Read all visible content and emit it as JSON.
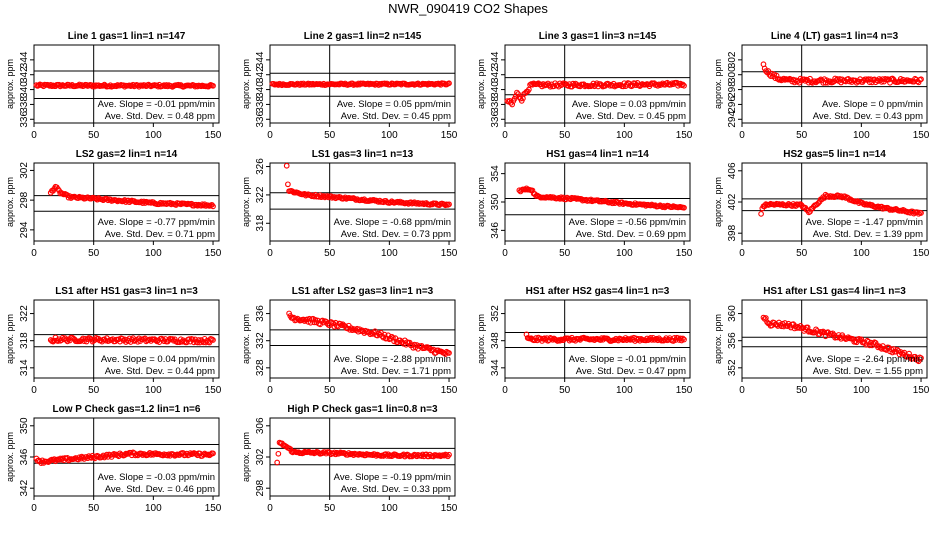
{
  "figure": {
    "title": "NWR_090419  CO2 Shapes",
    "colors": {
      "points": "#ff0000",
      "axes": "#000000",
      "background": "#ffffff"
    }
  },
  "chart_data": [
    {
      "type": "scatter",
      "title": "Line 1 gas=1 lin=1 n=147",
      "ylabel": "approx. ppm",
      "xlim": [
        0,
        155
      ],
      "ylim": [
        335.5,
        346
      ],
      "xticks": [
        0,
        50,
        100,
        150
      ],
      "yticks": [
        336,
        338,
        340,
        342,
        344
      ],
      "hlines": [
        338.8,
        342.5
      ],
      "vline": 50,
      "slope_text": "Ave. Slope =  -0.01  ppm/min",
      "sd_text": "Ave. Std. Dev. =   0.48  ppm",
      "segments": [
        {
          "x": [
            2,
            150
          ],
          "y": [
            340.55,
            340.5
          ]
        }
      ],
      "noise": 0.15
    },
    {
      "type": "scatter",
      "title": "Line 2 gas=1 lin=2 n=145",
      "ylabel": "approx. ppm",
      "xlim": [
        0,
        155
      ],
      "ylim": [
        335.5,
        346
      ],
      "xticks": [
        0,
        50,
        100,
        150
      ],
      "yticks": [
        336,
        338,
        340,
        342,
        344
      ],
      "hlines": [
        339.1,
        342.2
      ],
      "vline": 50,
      "slope_text": "Ave. Slope =   0.05  ppm/min",
      "sd_text": "Ave. Std. Dev. =   0.45  ppm",
      "segments": [
        {
          "x": [
            2,
            150
          ],
          "y": [
            340.7,
            340.75
          ]
        }
      ],
      "noise": 0.12
    },
    {
      "type": "scatter",
      "title": "Line 3 gas=1 lin=3 n=145",
      "ylabel": "approx. ppm",
      "xlim": [
        0,
        155
      ],
      "ylim": [
        335.5,
        346
      ],
      "xticks": [
        0,
        50,
        100,
        150
      ],
      "yticks": [
        336,
        338,
        340,
        342,
        344
      ],
      "hlines": [
        339.3,
        341.6
      ],
      "vline": 50,
      "slope_text": "Ave. Slope =   0.03  ppm/min",
      "sd_text": "Ave. Std. Dev. =   0.45  ppm",
      "segments": [
        {
          "x": [
            2,
            6,
            10,
            14,
            18,
            22,
            150
          ],
          "y": [
            338.5,
            338.0,
            339.5,
            338.7,
            339.8,
            340.6,
            340.7
          ]
        }
      ],
      "noise": 0.25
    },
    {
      "type": "scatter",
      "title": "Line 4 (LT) gas=1 lin=4 n=3",
      "ylabel": "approx. ppm",
      "xlim": [
        0,
        155
      ],
      "ylim": [
        293.5,
        304
      ],
      "xticks": [
        0,
        50,
        100,
        150
      ],
      "yticks": [
        294,
        296,
        298,
        300,
        302
      ],
      "hlines": [
        298.4,
        300.4
      ],
      "vline": 50,
      "slope_text": "Ave. Slope =      0  ppm/min",
      "sd_text": "Ave. Std. Dev. =   0.43  ppm",
      "segments": [
        {
          "x": [
            18,
            22,
            30,
            40,
            150
          ],
          "y": [
            301.2,
            300.3,
            299.5,
            299.2,
            299.2
          ]
        }
      ],
      "noise": 0.3
    },
    {
      "type": "scatter",
      "title": "LS2 gas=2 lin=1 n=14",
      "ylabel": "approx. ppm",
      "xlim": [
        0,
        155
      ],
      "ylim": [
        292.5,
        303
      ],
      "xticks": [
        0,
        50,
        100,
        150
      ],
      "yticks": [
        294,
        298,
        302
      ],
      "hlines": [
        296.5,
        298.6
      ],
      "vline": 50,
      "slope_text": "Ave. Slope =  -0.77  ppm/min",
      "sd_text": "Ave. Std. Dev. =   0.71  ppm",
      "segments": [
        {
          "x": [
            14,
            18,
            22,
            30,
            50,
            100,
            150
          ],
          "y": [
            299.0,
            299.8,
            299.0,
            298.4,
            298.2,
            297.6,
            297.3
          ]
        }
      ],
      "noise": 0.15
    },
    {
      "type": "scatter",
      "title": "LS1 gas=3 lin=1 n=13",
      "ylabel": "approx. ppm",
      "xlim": [
        0,
        155
      ],
      "ylim": [
        315.5,
        326.5
      ],
      "xticks": [
        0,
        50,
        100,
        150
      ],
      "yticks": [
        318,
        322,
        326
      ],
      "hlines": [
        320,
        322.3
      ],
      "vline": 50,
      "slope_text": "Ave. Slope =  -0.68  ppm/min",
      "sd_text": "Ave. Std. Dev. =   0.73  ppm",
      "segments": [
        {
          "x": [
            14,
            15
          ],
          "y": [
            326.2,
            323.5
          ]
        },
        {
          "x": [
            16,
            30,
            60,
            100,
            150
          ],
          "y": [
            322.6,
            322.0,
            321.6,
            321.0,
            320.6
          ]
        }
      ],
      "noise": 0.15
    },
    {
      "type": "scatter",
      "title": "HS1 gas=4 lin=1 n=14",
      "ylabel": "approx. ppm",
      "xlim": [
        0,
        155
      ],
      "ylim": [
        344.5,
        355.5
      ],
      "xticks": [
        0,
        50,
        100,
        150
      ],
      "yticks": [
        346,
        350,
        354
      ],
      "hlines": [
        348.2,
        350.5
      ],
      "vline": 50,
      "slope_text": "Ave. Slope =  -0.56  ppm/min",
      "sd_text": "Ave. Std. Dev. =   0.69  ppm",
      "segments": [
        {
          "x": [
            12,
            18,
            22,
            26,
            60,
            100,
            150
          ],
          "y": [
            351.6,
            351.8,
            351.8,
            350.8,
            350.4,
            349.8,
            349.2
          ]
        }
      ],
      "noise": 0.15
    },
    {
      "type": "scatter",
      "title": "HS2 gas=5 lin=1 n=14",
      "ylabel": "approx. ppm",
      "xlim": [
        0,
        155
      ],
      "ylim": [
        397,
        407
      ],
      "xticks": [
        0,
        50,
        100,
        150
      ],
      "yticks": [
        398,
        402,
        406
      ],
      "hlines": [
        400.9,
        402.4
      ],
      "vline": 50,
      "slope_text": "Ave. Slope =  -1.47  ppm/min",
      "sd_text": "Ave. Std. Dev. =   1.39  ppm",
      "segments": [
        {
          "x": [
            16,
            18,
            22,
            50,
            56,
            62,
            70,
            85,
            100,
            120,
            150
          ],
          "y": [
            400.6,
            401.5,
            401.7,
            401.6,
            400.7,
            401.7,
            402.8,
            402.7,
            401.8,
            401.2,
            400.5
          ]
        }
      ],
      "noise": 0.15
    },
    {
      "type": "scatter",
      "title": "LS1 after HS1 gas=3 lin=1 n=3",
      "ylabel": "approx. ppm",
      "xlim": [
        0,
        155
      ],
      "ylim": [
        312.5,
        324
      ],
      "xticks": [
        0,
        50,
        100,
        150
      ],
      "yticks": [
        314,
        318,
        322
      ],
      "hlines": [
        317.1,
        318.9
      ],
      "vline": 50,
      "slope_text": "Ave. Slope =   0.04  ppm/min",
      "sd_text": "Ave. Std. Dev. =   0.44  ppm",
      "segments": [
        {
          "x": [
            14,
            18,
            150
          ],
          "y": [
            318.0,
            318.2,
            318.0
          ]
        }
      ],
      "noise": 0.3
    },
    {
      "type": "scatter",
      "title": "LS1 after LS2 gas=3 lin=1 n=3",
      "ylabel": "approx. ppm",
      "xlim": [
        0,
        155
      ],
      "ylim": [
        326.5,
        338
      ],
      "xticks": [
        0,
        50,
        100,
        150
      ],
      "yticks": [
        328,
        332,
        336
      ],
      "hlines": [
        331.3,
        333.6
      ],
      "vline": 50,
      "slope_text": "Ave. Slope =  -2.88  ppm/min",
      "sd_text": "Ave. Std. Dev. =   1.71  ppm",
      "segments": [
        {
          "x": [
            16,
            18,
            26,
            50,
            90,
            120,
            150
          ],
          "y": [
            336.0,
            335.4,
            335.2,
            334.5,
            333.0,
            331.3,
            330.0
          ]
        }
      ],
      "noise": 0.35
    },
    {
      "type": "scatter",
      "title": "HS1 after HS2 gas=4 lin=1 n=3",
      "ylabel": "approx. ppm",
      "xlim": [
        0,
        155
      ],
      "ylim": [
        342.5,
        354
      ],
      "xticks": [
        0,
        50,
        100,
        150
      ],
      "yticks": [
        344,
        348,
        352
      ],
      "hlines": [
        347,
        349.2
      ],
      "vline": 50,
      "slope_text": "Ave. Slope =  -0.01  ppm/min",
      "sd_text": "Ave. Std. Dev. =   0.47  ppm",
      "segments": [
        {
          "x": [
            18,
            20,
            150
          ],
          "y": [
            348.8,
            348.2,
            348.2
          ]
        }
      ],
      "noise": 0.25
    },
    {
      "type": "scatter",
      "title": "HS1 after LS1 gas=4 lin=1 n=3",
      "ylabel": "approx. ppm",
      "xlim": [
        0,
        155
      ],
      "ylim": [
        350.5,
        362
      ],
      "xticks": [
        0,
        50,
        100,
        150
      ],
      "yticks": [
        352,
        356,
        360
      ],
      "hlines": [
        355.1,
        356.5
      ],
      "vline": 50,
      "slope_text": "Ave. Slope =  -2.64  ppm/min",
      "sd_text": "Ave. Std. Dev. =   1.55  ppm",
      "segments": [
        {
          "x": [
            18,
            24,
            40,
            70,
            110,
            150
          ],
          "y": [
            359.5,
            358.5,
            358.3,
            357.0,
            355.5,
            353.2
          ]
        }
      ],
      "noise": 0.35
    },
    {
      "type": "scatter",
      "title": "Low P Check gas=1.2 lin=1 n=6",
      "ylabel": "approx. ppm",
      "xlim": [
        0,
        155
      ],
      "ylim": [
        341,
        351
      ],
      "xticks": [
        0,
        50,
        100,
        150
      ],
      "yticks": [
        342,
        346,
        350
      ],
      "hlines": [
        345.2,
        347.6
      ],
      "vline": 50,
      "slope_text": "Ave. Slope =  -0.03  ppm/min",
      "sd_text": "Ave. Std. Dev. =   0.46  ppm",
      "segments": [
        {
          "x": [
            2,
            6,
            20,
            50,
            80,
            150
          ],
          "y": [
            345.8,
            345.4,
            345.6,
            346.0,
            346.4,
            346.3
          ]
        }
      ],
      "noise": 0.2
    },
    {
      "type": "scatter",
      "title": "High P Check gas=1 lin=0.8 n=3",
      "ylabel": "approx. ppm",
      "xlim": [
        0,
        155
      ],
      "ylim": [
        297,
        307
      ],
      "xticks": [
        0,
        50,
        100,
        150
      ],
      "yticks": [
        298,
        302,
        306
      ],
      "hlines": [
        301,
        303.1
      ],
      "vline": 50,
      "slope_text": "Ave. Slope =  -0.19  ppm/min",
      "sd_text": "Ave. Std. Dev. =   0.33  ppm",
      "segments": [
        {
          "x": [
            6,
            8,
            12,
            20,
            50,
            100,
            150
          ],
          "y": [
            301.2,
            303.8,
            303.5,
            302.6,
            302.5,
            302.2,
            302.2
          ]
        }
      ],
      "noise": 0.15
    }
  ]
}
